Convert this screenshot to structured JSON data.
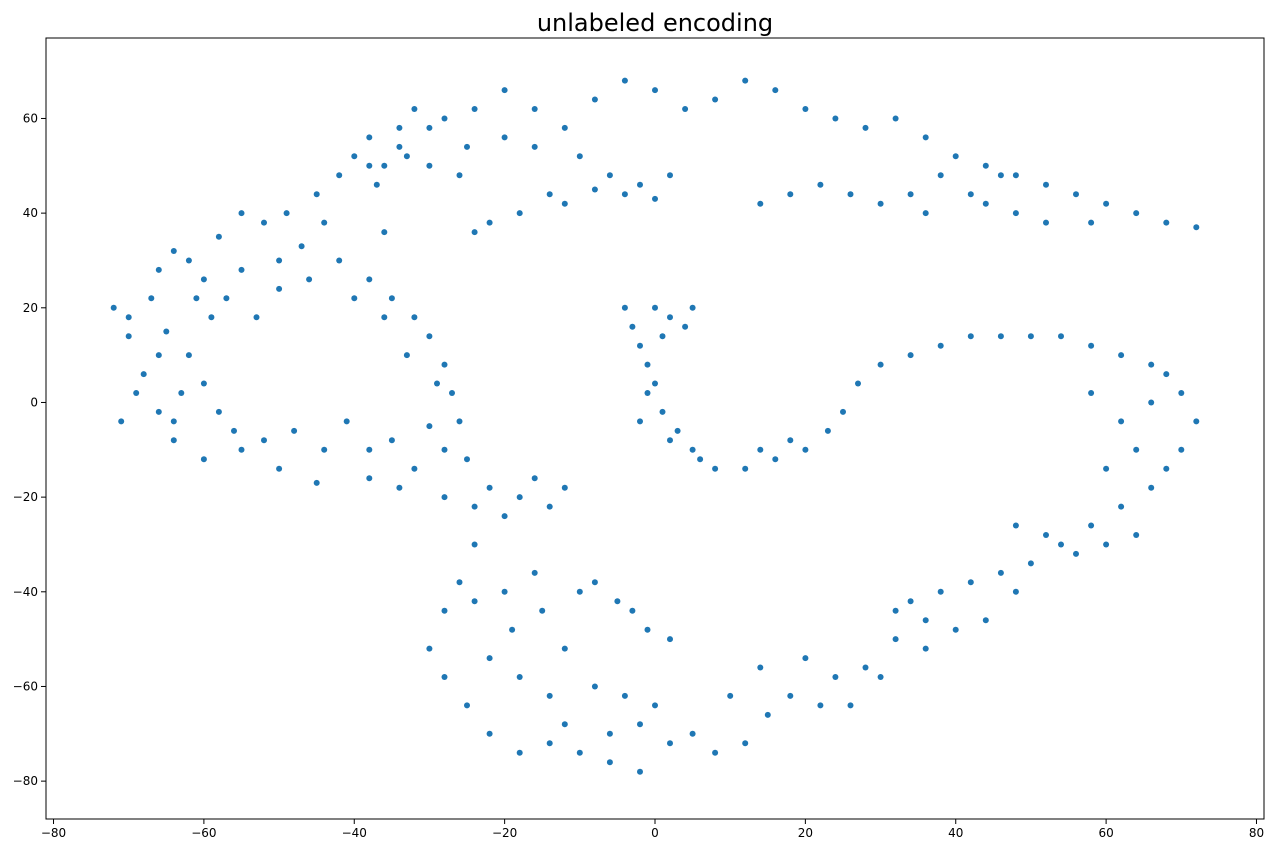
{
  "chart_data": {
    "type": "scatter",
    "title": "unlabeled encoding",
    "xlabel": "",
    "ylabel": "",
    "xlim": [
      -81,
      81
    ],
    "ylim": [
      -88,
      77
    ],
    "x_ticks": [
      -80,
      -60,
      -40,
      -20,
      0,
      20,
      40,
      60,
      80
    ],
    "y_ticks": [
      -80,
      -60,
      -40,
      -20,
      0,
      20,
      40,
      60
    ],
    "grid": false,
    "legend": "none",
    "point_color": "#1f77b4",
    "series": [
      {
        "points": [
          [
            -72,
            20
          ],
          [
            -70,
            14
          ],
          [
            -68,
            6
          ],
          [
            -66,
            -2
          ],
          [
            -64,
            -8
          ],
          [
            -60,
            -12
          ],
          [
            -55,
            -10
          ],
          [
            -50,
            -14
          ],
          [
            -45,
            -17
          ],
          [
            -38,
            -16
          ],
          [
            -32,
            -14
          ],
          [
            -28,
            -10
          ],
          [
            -25,
            -12
          ],
          [
            -30,
            -5
          ],
          [
            -35,
            -8
          ],
          [
            -70,
            18
          ],
          [
            -67,
            22
          ],
          [
            -65,
            15
          ],
          [
            -62,
            10
          ],
          [
            -60,
            4
          ],
          [
            -58,
            -2
          ],
          [
            -63,
            2
          ],
          [
            -66,
            10
          ],
          [
            -69,
            2
          ],
          [
            -71,
            -4
          ],
          [
            -64,
            -4
          ],
          [
            -56,
            -6
          ],
          [
            -52,
            -8
          ],
          [
            -48,
            -6
          ],
          [
            -44,
            -10
          ],
          [
            -62,
            30
          ],
          [
            -58,
            35
          ],
          [
            -55,
            40
          ],
          [
            -52,
            38
          ],
          [
            -50,
            30
          ],
          [
            -55,
            28
          ],
          [
            -60,
            26
          ],
          [
            -64,
            32
          ],
          [
            -66,
            28
          ],
          [
            -57,
            22
          ],
          [
            -53,
            18
          ],
          [
            -59,
            18
          ],
          [
            -61,
            22
          ],
          [
            -49,
            40
          ],
          [
            -45,
            44
          ],
          [
            -42,
            48
          ],
          [
            -40,
            52
          ],
          [
            -38,
            56
          ],
          [
            -36,
            50
          ],
          [
            -34,
            58
          ],
          [
            -32,
            62
          ],
          [
            -30,
            58
          ],
          [
            -33,
            52
          ],
          [
            -37,
            46
          ],
          [
            -44,
            38
          ],
          [
            -47,
            33
          ],
          [
            -42,
            30
          ],
          [
            -38,
            26
          ],
          [
            -35,
            22
          ],
          [
            -32,
            18
          ],
          [
            -30,
            14
          ],
          [
            -28,
            8
          ],
          [
            -27,
            2
          ],
          [
            -26,
            -4
          ],
          [
            -29,
            4
          ],
          [
            -33,
            10
          ],
          [
            -36,
            18
          ],
          [
            -40,
            22
          ],
          [
            -46,
            26
          ],
          [
            -50,
            24
          ],
          [
            -41,
            -4
          ],
          [
            -38,
            -10
          ],
          [
            -34,
            -18
          ],
          [
            -28,
            -20
          ],
          [
            -24,
            -22
          ],
          [
            -22,
            -18
          ],
          [
            -18,
            -20
          ],
          [
            -14,
            -22
          ],
          [
            -12,
            -18
          ],
          [
            -16,
            -16
          ],
          [
            -20,
            -24
          ],
          [
            -24,
            -30
          ],
          [
            -26,
            -38
          ],
          [
            -28,
            -44
          ],
          [
            -30,
            -52
          ],
          [
            -28,
            -58
          ],
          [
            -25,
            -64
          ],
          [
            -22,
            -70
          ],
          [
            -18,
            -74
          ],
          [
            -14,
            -72
          ],
          [
            -24,
            -42
          ],
          [
            -20,
            -40
          ],
          [
            -16,
            -36
          ],
          [
            -19,
            -48
          ],
          [
            -22,
            -54
          ],
          [
            -18,
            -58
          ],
          [
            -14,
            -62
          ],
          [
            -12,
            -52
          ],
          [
            -15,
            -44
          ],
          [
            -10,
            -40
          ],
          [
            -8,
            -38
          ],
          [
            -5,
            -42
          ],
          [
            -3,
            -44
          ],
          [
            -1,
            -48
          ],
          [
            2,
            -50
          ],
          [
            -12,
            -68
          ],
          [
            -10,
            -74
          ],
          [
            -6,
            -76
          ],
          [
            -2,
            -78
          ],
          [
            2,
            -72
          ],
          [
            5,
            -70
          ],
          [
            8,
            -74
          ],
          [
            12,
            -72
          ],
          [
            15,
            -66
          ],
          [
            18,
            -62
          ],
          [
            22,
            -64
          ],
          [
            26,
            -64
          ],
          [
            28,
            -56
          ],
          [
            32,
            -50
          ],
          [
            36,
            -46
          ],
          [
            -8,
            -60
          ],
          [
            -4,
            -62
          ],
          [
            0,
            -64
          ],
          [
            -2,
            -68
          ],
          [
            -6,
            -70
          ],
          [
            10,
            -62
          ],
          [
            14,
            -56
          ],
          [
            20,
            -54
          ],
          [
            24,
            -58
          ],
          [
            30,
            -58
          ],
          [
            34,
            -42
          ],
          [
            38,
            -40
          ],
          [
            42,
            -38
          ],
          [
            46,
            -36
          ],
          [
            50,
            -34
          ],
          [
            54,
            -30
          ],
          [
            58,
            -26
          ],
          [
            62,
            -22
          ],
          [
            66,
            -18
          ],
          [
            68,
            -14
          ],
          [
            70,
            -10
          ],
          [
            72,
            -4
          ],
          [
            70,
            2
          ],
          [
            68,
            6
          ],
          [
            66,
            8
          ],
          [
            62,
            10
          ],
          [
            58,
            12
          ],
          [
            54,
            14
          ],
          [
            50,
            14
          ],
          [
            46,
            14
          ],
          [
            42,
            14
          ],
          [
            38,
            12
          ],
          [
            34,
            10
          ],
          [
            30,
            8
          ],
          [
            27,
            4
          ],
          [
            25,
            -2
          ],
          [
            23,
            -6
          ],
          [
            20,
            -10
          ],
          [
            16,
            -12
          ],
          [
            12,
            -14
          ],
          [
            8,
            -14
          ],
          [
            5,
            -10
          ],
          [
            3,
            -6
          ],
          [
            1,
            -2
          ],
          [
            0,
            4
          ],
          [
            -1,
            8
          ],
          [
            -2,
            12
          ],
          [
            -3,
            16
          ],
          [
            -4,
            20
          ],
          [
            0,
            20
          ],
          [
            2,
            18
          ],
          [
            4,
            16
          ],
          [
            5,
            20
          ],
          [
            1,
            14
          ],
          [
            -1,
            2
          ],
          [
            -2,
            -4
          ],
          [
            2,
            -8
          ],
          [
            6,
            -12
          ],
          [
            14,
            -10
          ],
          [
            18,
            -8
          ],
          [
            64,
            -28
          ],
          [
            60,
            -30
          ],
          [
            56,
            -32
          ],
          [
            52,
            -28
          ],
          [
            48,
            -26
          ],
          [
            60,
            -14
          ],
          [
            64,
            -10
          ],
          [
            62,
            -4
          ],
          [
            58,
            2
          ],
          [
            66,
            0
          ],
          [
            48,
            -40
          ],
          [
            44,
            -46
          ],
          [
            40,
            -48
          ],
          [
            36,
            -52
          ],
          [
            32,
            -44
          ],
          [
            -28,
            60
          ],
          [
            -24,
            62
          ],
          [
            -20,
            66
          ],
          [
            -16,
            62
          ],
          [
            -12,
            58
          ],
          [
            -8,
            64
          ],
          [
            -4,
            68
          ],
          [
            0,
            66
          ],
          [
            4,
            62
          ],
          [
            8,
            64
          ],
          [
            12,
            68
          ],
          [
            16,
            66
          ],
          [
            20,
            62
          ],
          [
            24,
            60
          ],
          [
            28,
            58
          ],
          [
            32,
            60
          ],
          [
            36,
            56
          ],
          [
            40,
            52
          ],
          [
            44,
            50
          ],
          [
            48,
            48
          ],
          [
            52,
            46
          ],
          [
            56,
            44
          ],
          [
            60,
            42
          ],
          [
            64,
            40
          ],
          [
            68,
            38
          ],
          [
            72,
            37
          ],
          [
            58,
            38
          ],
          [
            52,
            38
          ],
          [
            48,
            40
          ],
          [
            44,
            42
          ],
          [
            -25,
            54
          ],
          [
            -20,
            56
          ],
          [
            -16,
            54
          ],
          [
            -10,
            52
          ],
          [
            -6,
            48
          ],
          [
            -2,
            46
          ],
          [
            2,
            48
          ],
          [
            -14,
            44
          ],
          [
            -18,
            40
          ],
          [
            -22,
            38
          ],
          [
            -24,
            36
          ],
          [
            -12,
            42
          ],
          [
            -8,
            45
          ],
          [
            -4,
            44
          ],
          [
            0,
            43
          ],
          [
            14,
            42
          ],
          [
            18,
            44
          ],
          [
            22,
            46
          ],
          [
            26,
            44
          ],
          [
            30,
            42
          ],
          [
            34,
            44
          ],
          [
            36,
            40
          ],
          [
            38,
            48
          ],
          [
            42,
            44
          ],
          [
            46,
            48
          ],
          [
            -26,
            48
          ],
          [
            -30,
            50
          ],
          [
            -34,
            54
          ],
          [
            -38,
            50
          ],
          [
            -36,
            36
          ]
        ]
      }
    ]
  }
}
